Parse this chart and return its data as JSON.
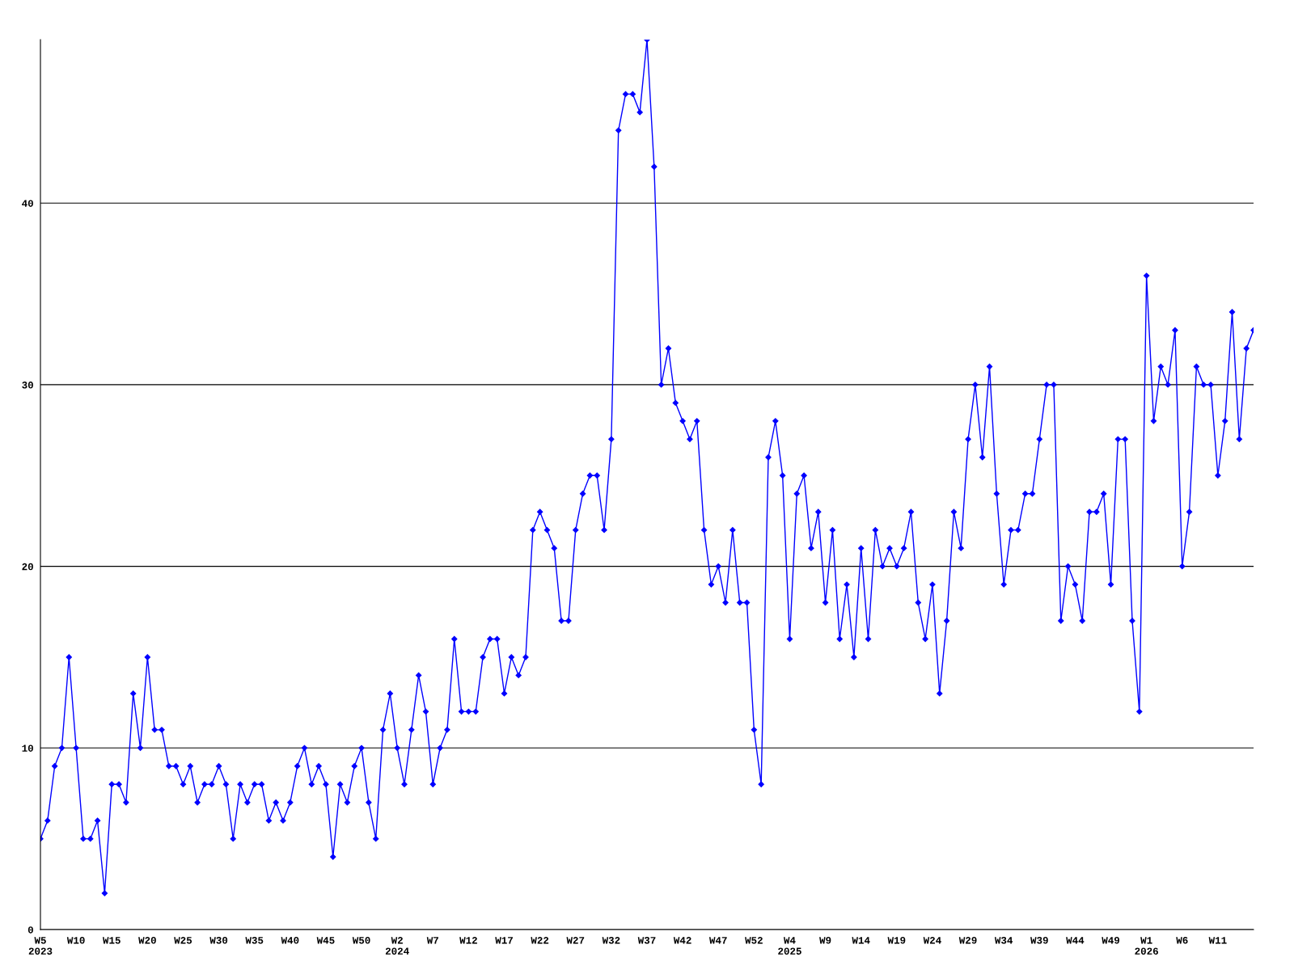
{
  "chart_data": {
    "type": "line",
    "categories": [
      "W5\n2023",
      null,
      null,
      null,
      null,
      "W10",
      null,
      null,
      null,
      null,
      "W15",
      null,
      null,
      null,
      null,
      "W20",
      null,
      null,
      null,
      null,
      "W25",
      null,
      null,
      null,
      null,
      "W30",
      null,
      null,
      null,
      null,
      "W35",
      null,
      null,
      null,
      null,
      "W40",
      null,
      null,
      null,
      null,
      "W45",
      null,
      null,
      null,
      null,
      "W50",
      null,
      null,
      null,
      null,
      "W2\n2024",
      null,
      null,
      null,
      null,
      "W7",
      null,
      null,
      null,
      null,
      "W12",
      null,
      null,
      null,
      null,
      "W17",
      null,
      null,
      null,
      null,
      "W22",
      null,
      null,
      null,
      null,
      "W27",
      null,
      null,
      null,
      null,
      "W32",
      null,
      null,
      null,
      null,
      "W37",
      null,
      null,
      null,
      null,
      "W42",
      null,
      null,
      null,
      null,
      "W47",
      null,
      null,
      null,
      null,
      "W52",
      null,
      null,
      null,
      null,
      "W4\n2025",
      null,
      null,
      null,
      null,
      "W9",
      null,
      null,
      null,
      null,
      "W14",
      null,
      null,
      null,
      null,
      "W19",
      null,
      null,
      null,
      null,
      "W24",
      null,
      null,
      null,
      null,
      "W29",
      null,
      null,
      null,
      null,
      "W34",
      null,
      null,
      null,
      null,
      "W39",
      null,
      null,
      null,
      null,
      "W44",
      null,
      null,
      null,
      null,
      "W49",
      null,
      null,
      null,
      null,
      "W1\n2026",
      null,
      null,
      null,
      null,
      "W6",
      null,
      null,
      null,
      null,
      "W11",
      null,
      null,
      null,
      null,
      null
    ],
    "series": [
      {
        "color": "#0000ff",
        "values": [
          5,
          6,
          9,
          10,
          15,
          10,
          5,
          5,
          6,
          2,
          8,
          8,
          7,
          13,
          10,
          15,
          11,
          11,
          9,
          9,
          8,
          9,
          7,
          8,
          8,
          9,
          8,
          5,
          8,
          7,
          8,
          8,
          6,
          7,
          6,
          7,
          9,
          10,
          8,
          9,
          8,
          4,
          8,
          7,
          9,
          10,
          7,
          5,
          11,
          13,
          10,
          8,
          11,
          14,
          12,
          8,
          10,
          11,
          16,
          12,
          12,
          12,
          15,
          16,
          16,
          13,
          15,
          14,
          15,
          22,
          23,
          22,
          21,
          17,
          17,
          22,
          24,
          25,
          25,
          22,
          27,
          44,
          46,
          46,
          45,
          49,
          42,
          30,
          32,
          29,
          28,
          27,
          28,
          22,
          19,
          20,
          18,
          22,
          18,
          18,
          11,
          8,
          26,
          28,
          25,
          16,
          24,
          25,
          21,
          23,
          18,
          22,
          16,
          19,
          15,
          21,
          16,
          22,
          20,
          21,
          20,
          21,
          23,
          18,
          16,
          19,
          13,
          17,
          23,
          21,
          27,
          30,
          26,
          31,
          24,
          19,
          22,
          22,
          24,
          24,
          27,
          30,
          30,
          17,
          20,
          19,
          17,
          23,
          23,
          24,
          19,
          27,
          27,
          17,
          12,
          36,
          28,
          31,
          30,
          33,
          20,
          23,
          31,
          30,
          30,
          25,
          28,
          34,
          27,
          32,
          33
        ]
      }
    ],
    "ylim": [
      0,
      49
    ],
    "yticks": [
      0,
      10,
      20,
      30,
      40
    ],
    "grid": "y",
    "marker": "diamond",
    "line_style": "solid",
    "legend": false
  }
}
